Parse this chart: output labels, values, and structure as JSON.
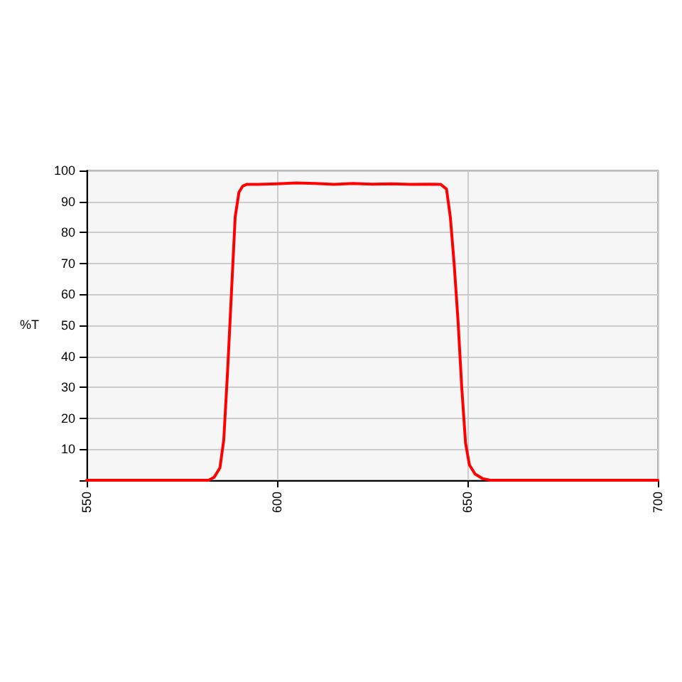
{
  "chart_data": {
    "type": "line",
    "ylabel": "%T",
    "x": [
      550,
      582,
      583.5,
      585,
      586,
      587,
      588,
      589,
      590,
      591,
      592,
      595,
      600,
      605,
      610,
      615,
      620,
      625,
      630,
      635,
      640,
      643,
      644.5,
      645.5,
      646.5,
      647.5,
      648.5,
      649.5,
      650.5,
      652,
      654,
      656,
      700
    ],
    "series": [
      {
        "color": "#ff0000",
        "values": [
          0,
          0,
          1,
          4,
          13,
          35,
          60,
          85,
          93,
          95,
          95.5,
          95.5,
          95.7,
          96,
          95.8,
          95.5,
          95.8,
          95.6,
          95.7,
          95.5,
          95.6,
          95.5,
          94,
          85,
          70,
          52,
          30,
          12,
          5,
          2,
          0.5,
          0,
          0
        ]
      }
    ],
    "xlim": [
      550,
      700
    ],
    "xticks": [
      550,
      600,
      650,
      700
    ],
    "ylim": [
      0,
      100
    ],
    "yticks": [
      {
        "value": 0,
        "label": null
      },
      10,
      20,
      30,
      40,
      50,
      60,
      70,
      80,
      90,
      100
    ],
    "grid": true,
    "marker": "none",
    "line_style": "solid"
  }
}
